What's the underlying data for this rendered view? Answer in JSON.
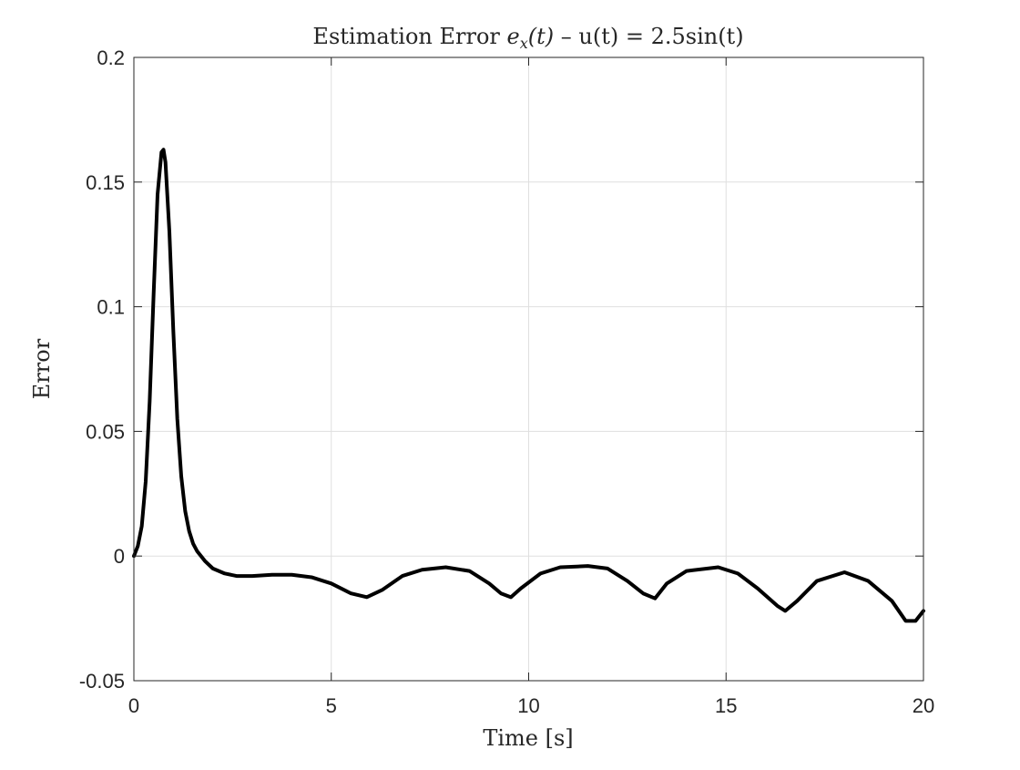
{
  "chart_data": {
    "type": "line",
    "title": {
      "prefix": "Estimation Error ",
      "math_var": "e",
      "math_sub": "x",
      "math_arg": "(t)",
      "suffix": " – u(t) = 2.5sin(t)"
    },
    "xlabel": "Time [s]",
    "ylabel": "Error",
    "xlim": [
      0,
      20
    ],
    "ylim": [
      -0.05,
      0.2
    ],
    "xticks": [
      0,
      5,
      10,
      15,
      20
    ],
    "xtick_labels": [
      "0",
      "5",
      "10",
      "15",
      "20"
    ],
    "yticks": [
      -0.05,
      0,
      0.05,
      0.1,
      0.15,
      0.2
    ],
    "ytick_labels": [
      "-0.05",
      "0",
      "0.05",
      "0.1",
      "0.15",
      "0.2"
    ],
    "grid": true,
    "series": [
      {
        "name": "e_x(t)",
        "color": "#000000",
        "x": [
          0,
          0.1,
          0.2,
          0.3,
          0.4,
          0.5,
          0.6,
          0.7,
          0.75,
          0.8,
          0.9,
          1.0,
          1.1,
          1.2,
          1.3,
          1.4,
          1.5,
          1.6,
          1.8,
          2.0,
          2.3,
          2.6,
          3.0,
          3.5,
          4.0,
          4.5,
          5.0,
          5.5,
          5.9,
          6.3,
          6.8,
          7.3,
          7.9,
          8.5,
          9.0,
          9.3,
          9.55,
          9.8,
          10.3,
          10.8,
          11.5,
          12.0,
          12.5,
          12.9,
          13.2,
          13.5,
          14.0,
          14.8,
          15.3,
          15.8,
          16.3,
          16.5,
          16.8,
          17.3,
          18.0,
          18.6,
          19.2,
          19.55,
          19.8,
          20.0
        ],
        "y": [
          0.0,
          0.004,
          0.012,
          0.03,
          0.062,
          0.105,
          0.145,
          0.162,
          0.163,
          0.158,
          0.13,
          0.09,
          0.055,
          0.032,
          0.018,
          0.01,
          0.005,
          0.002,
          -0.002,
          -0.005,
          -0.007,
          -0.008,
          -0.008,
          -0.0075,
          -0.0075,
          -0.0085,
          -0.011,
          -0.015,
          -0.0165,
          -0.0135,
          -0.008,
          -0.0055,
          -0.0045,
          -0.006,
          -0.011,
          -0.015,
          -0.0165,
          -0.013,
          -0.007,
          -0.0045,
          -0.004,
          -0.005,
          -0.01,
          -0.015,
          -0.017,
          -0.011,
          -0.006,
          -0.0045,
          -0.007,
          -0.013,
          -0.02,
          -0.022,
          -0.018,
          -0.01,
          -0.0065,
          -0.01,
          -0.018,
          -0.026,
          -0.026,
          -0.022
        ]
      }
    ]
  }
}
